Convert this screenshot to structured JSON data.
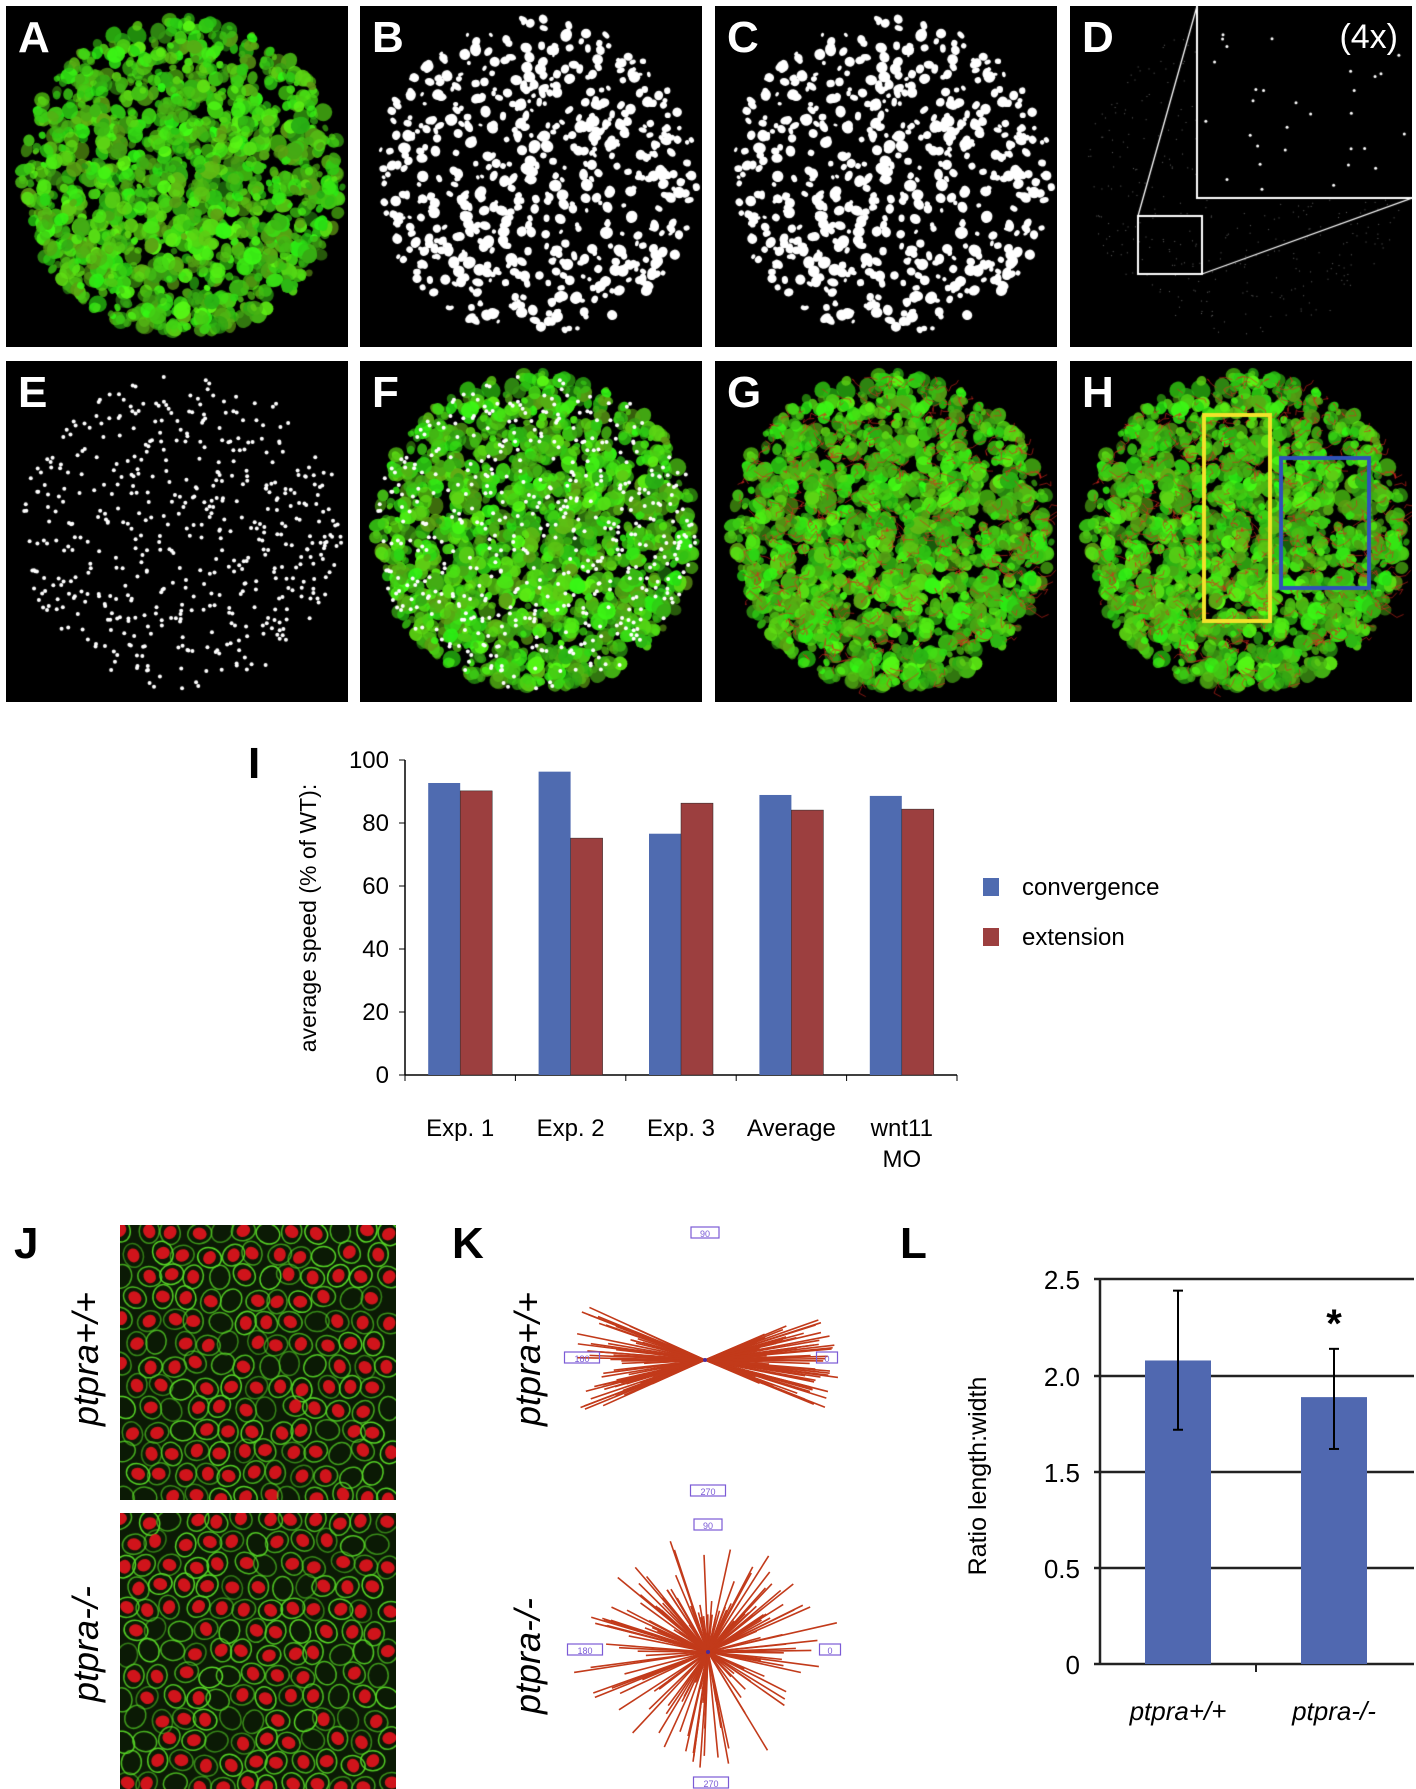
{
  "panels_top": [
    {
      "label": "A",
      "kind": "green"
    },
    {
      "label": "B",
      "kind": "white-blobs"
    },
    {
      "label": "C",
      "kind": "white-blobs"
    },
    {
      "label": "D",
      "kind": "points-inset",
      "inset_label": "(4x)"
    },
    {
      "label": "E",
      "kind": "white-dots"
    },
    {
      "label": "F",
      "kind": "green-dots"
    },
    {
      "label": "G",
      "kind": "green-tracks"
    },
    {
      "label": "H",
      "kind": "green-tracks-boxes"
    }
  ],
  "colors": {
    "convergence": "#4f6bb0",
    "extension": "#9c3f3f",
    "highlight_yellow": "#f2e22a",
    "highlight_blue": "#2f52b8",
    "rose": "#c23a1a",
    "rose_label": "#7b5bd6",
    "bar_L": "#5068b0"
  },
  "panel_I": {
    "label": "I"
  },
  "panel_J": {
    "label": "J",
    "rows": [
      "ptpra+/+",
      "ptpra-/-"
    ]
  },
  "panel_K": {
    "label": "K",
    "rows": [
      "ptpra+/+",
      "ptpra-/-"
    ],
    "angle_labels": [
      "90",
      "180",
      "0",
      "270"
    ]
  },
  "panel_L": {
    "label": "L"
  },
  "chart_data": [
    {
      "type": "bar",
      "panel": "I",
      "categories": [
        "Exp. 1",
        "Exp. 2",
        "Exp. 3",
        "Average",
        "wnt11 MO"
      ],
      "series": [
        {
          "name": "convergence",
          "values": [
            92.7,
            96.3,
            76.6,
            88.9,
            88.6
          ]
        },
        {
          "name": "extension",
          "values": [
            90.2,
            75.2,
            86.3,
            84.1,
            84.4
          ]
        }
      ],
      "ylabel": "average speed (% of WT):",
      "yticks": [
        "0",
        "20",
        "40",
        "60",
        "80",
        "100"
      ],
      "ylim": [
        0,
        100
      ],
      "grid": false,
      "legend": "right"
    },
    {
      "type": "bar",
      "panel": "L",
      "categories": [
        "ptpra+/+",
        "ptpra-/-"
      ],
      "values": [
        2.08,
        1.89
      ],
      "error_upper": [
        2.44,
        2.14
      ],
      "error_lower": [
        1.72,
        1.62
      ],
      "annotations": [
        "",
        "*"
      ],
      "ylabel": "Ratio length:width",
      "yticks": [
        "0",
        "0.5",
        "1.5",
        "2.0",
        "2.5"
      ],
      "ytick_values": [
        0,
        0.5,
        1.5,
        2.0,
        2.5
      ],
      "grid": true
    }
  ]
}
